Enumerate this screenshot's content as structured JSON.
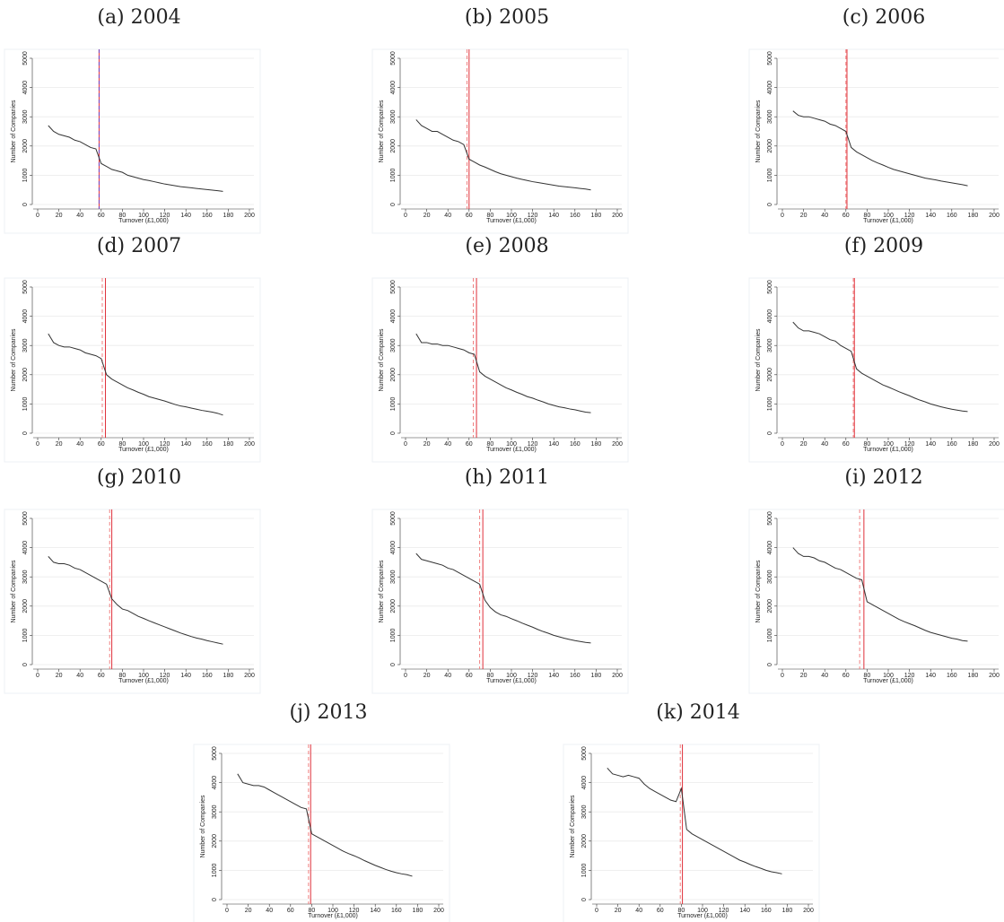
{
  "chart_data": [
    {
      "type": "line",
      "title": "(a) 2004",
      "xlabel": "Turnover (£1,000)",
      "ylabel": "Number of Companies",
      "color": "#333333",
      "xlim": [
        0,
        200
      ],
      "ylim": [
        0,
        5000
      ],
      "xticks": [
        0,
        20,
        40,
        60,
        80,
        100,
        120,
        140,
        160,
        180,
        200
      ],
      "yticks": [
        0,
        1000,
        2000,
        3000,
        4000,
        5000
      ],
      "grid": true,
      "vlines": [
        {
          "x": 58,
          "style": "solid",
          "color": "#e0303a"
        },
        {
          "x": 58,
          "style": "dashed",
          "color": "#7040c0"
        }
      ],
      "x": [
        10,
        15,
        20,
        25,
        30,
        35,
        40,
        45,
        50,
        55,
        60,
        65,
        70,
        75,
        80,
        85,
        90,
        95,
        100,
        105,
        110,
        115,
        120,
        125,
        130,
        135,
        140,
        145,
        150,
        155,
        160,
        165,
        170,
        175
      ],
      "values": [
        2700,
        2500,
        2400,
        2350,
        2300,
        2200,
        2150,
        2050,
        1950,
        1900,
        1400,
        1300,
        1200,
        1150,
        1100,
        1000,
        950,
        900,
        850,
        820,
        780,
        740,
        700,
        670,
        640,
        610,
        590,
        570,
        550,
        530,
        510,
        490,
        470,
        450
      ]
    },
    {
      "type": "line",
      "title": "(b) 2005",
      "xlabel": "Turnover (£1,000)",
      "ylabel": "Number of Companies",
      "color": "#333333",
      "xlim": [
        0,
        200
      ],
      "ylim": [
        0,
        5000
      ],
      "xticks": [
        0,
        20,
        40,
        60,
        80,
        100,
        120,
        140,
        160,
        180,
        200
      ],
      "yticks": [
        0,
        1000,
        2000,
        3000,
        4000,
        5000
      ],
      "grid": true,
      "vlines": [
        {
          "x": 60,
          "style": "solid",
          "color": "#e0303a"
        },
        {
          "x": 58,
          "style": "dashed",
          "color": "#f08080"
        }
      ],
      "x": [
        10,
        15,
        20,
        25,
        30,
        35,
        40,
        45,
        50,
        55,
        60,
        65,
        70,
        75,
        80,
        85,
        90,
        95,
        100,
        105,
        110,
        115,
        120,
        125,
        130,
        135,
        140,
        145,
        150,
        155,
        160,
        165,
        170,
        175
      ],
      "values": [
        2900,
        2700,
        2600,
        2500,
        2500,
        2400,
        2300,
        2200,
        2150,
        2050,
        1550,
        1450,
        1350,
        1280,
        1200,
        1120,
        1050,
        1000,
        950,
        900,
        860,
        820,
        780,
        750,
        720,
        690,
        660,
        630,
        610,
        590,
        570,
        550,
        530,
        500
      ]
    },
    {
      "type": "line",
      "title": "(c) 2006",
      "xlabel": "Turnover (£1,000)",
      "ylabel": "Number of Companies",
      "color": "#333333",
      "xlim": [
        0,
        200
      ],
      "ylim": [
        0,
        5000
      ],
      "xticks": [
        0,
        20,
        40,
        60,
        80,
        100,
        120,
        140,
        160,
        180,
        200
      ],
      "yticks": [
        0,
        1000,
        2000,
        3000,
        4000,
        5000
      ],
      "grid": true,
      "vlines": [
        {
          "x": 61,
          "style": "solid",
          "color": "#e0303a"
        },
        {
          "x": 60,
          "style": "dashed",
          "color": "#f08080"
        }
      ],
      "x": [
        10,
        15,
        20,
        25,
        30,
        35,
        40,
        45,
        50,
        55,
        60,
        65,
        70,
        75,
        80,
        85,
        90,
        95,
        100,
        105,
        110,
        115,
        120,
        125,
        130,
        135,
        140,
        145,
        150,
        155,
        160,
        165,
        170,
        175
      ],
      "values": [
        3200,
        3050,
        3000,
        3000,
        2950,
        2900,
        2850,
        2750,
        2700,
        2600,
        2500,
        1950,
        1800,
        1700,
        1600,
        1500,
        1420,
        1350,
        1270,
        1200,
        1150,
        1100,
        1050,
        1000,
        950,
        900,
        870,
        840,
        800,
        770,
        740,
        710,
        680,
        640
      ]
    },
    {
      "type": "line",
      "title": "(d) 2007",
      "xlabel": "Turnover (£1,000)",
      "ylabel": "Number of Companies",
      "color": "#333333",
      "xlim": [
        0,
        200
      ],
      "ylim": [
        0,
        5000
      ],
      "xticks": [
        0,
        20,
        40,
        60,
        80,
        100,
        120,
        140,
        160,
        180,
        200
      ],
      "yticks": [
        0,
        1000,
        2000,
        3000,
        4000,
        5000
      ],
      "grid": true,
      "vlines": [
        {
          "x": 64,
          "style": "solid",
          "color": "#e0303a"
        },
        {
          "x": 61,
          "style": "dashed",
          "color": "#f08080"
        }
      ],
      "x": [
        10,
        15,
        20,
        25,
        30,
        35,
        40,
        45,
        50,
        55,
        60,
        65,
        70,
        75,
        80,
        85,
        90,
        95,
        100,
        105,
        110,
        115,
        120,
        125,
        130,
        135,
        140,
        145,
        150,
        155,
        160,
        165,
        170,
        175
      ],
      "values": [
        3400,
        3100,
        3000,
        2950,
        2950,
        2900,
        2850,
        2750,
        2700,
        2650,
        2550,
        2000,
        1850,
        1750,
        1650,
        1550,
        1480,
        1400,
        1330,
        1250,
        1200,
        1150,
        1100,
        1040,
        980,
        930,
        900,
        860,
        820,
        780,
        750,
        720,
        680,
        620
      ]
    },
    {
      "type": "line",
      "title": "(e) 2008",
      "xlabel": "Turnover (£1,000)",
      "ylabel": "Number of Companies",
      "color": "#333333",
      "xlim": [
        0,
        200
      ],
      "ylim": [
        0,
        5000
      ],
      "xticks": [
        0,
        20,
        40,
        60,
        80,
        100,
        120,
        140,
        160,
        180,
        200
      ],
      "yticks": [
        0,
        1000,
        2000,
        3000,
        4000,
        5000
      ],
      "grid": true,
      "vlines": [
        {
          "x": 67,
          "style": "solid",
          "color": "#e0303a"
        },
        {
          "x": 64,
          "style": "dashed",
          "color": "#f08080"
        }
      ],
      "x": [
        10,
        15,
        20,
        25,
        30,
        35,
        40,
        45,
        50,
        55,
        60,
        65,
        70,
        75,
        80,
        85,
        90,
        95,
        100,
        105,
        110,
        115,
        120,
        125,
        130,
        135,
        140,
        145,
        150,
        155,
        160,
        165,
        170,
        175
      ],
      "values": [
        3400,
        3100,
        3100,
        3050,
        3050,
        3000,
        3000,
        2950,
        2900,
        2850,
        2750,
        2700,
        2100,
        1950,
        1850,
        1750,
        1650,
        1550,
        1480,
        1400,
        1330,
        1250,
        1200,
        1130,
        1070,
        1000,
        950,
        900,
        870,
        830,
        800,
        760,
        720,
        700
      ]
    },
    {
      "type": "line",
      "title": "(f) 2009",
      "xlabel": "Turnover (£1,000)",
      "ylabel": "Number of Companies",
      "color": "#333333",
      "xlim": [
        0,
        200
      ],
      "ylim": [
        0,
        5000
      ],
      "xticks": [
        0,
        20,
        40,
        60,
        80,
        100,
        120,
        140,
        160,
        180,
        200
      ],
      "yticks": [
        0,
        1000,
        2000,
        3000,
        4000,
        5000
      ],
      "grid": true,
      "vlines": [
        {
          "x": 68,
          "style": "solid",
          "color": "#e0303a"
        },
        {
          "x": 67,
          "style": "dashed",
          "color": "#f08080"
        }
      ],
      "x": [
        10,
        15,
        20,
        25,
        30,
        35,
        40,
        45,
        50,
        55,
        60,
        65,
        70,
        75,
        80,
        85,
        90,
        95,
        100,
        105,
        110,
        115,
        120,
        125,
        130,
        135,
        140,
        145,
        150,
        155,
        160,
        165,
        170,
        175
      ],
      "values": [
        3800,
        3600,
        3500,
        3500,
        3450,
        3400,
        3300,
        3200,
        3150,
        3000,
        2900,
        2800,
        2200,
        2050,
        1950,
        1850,
        1750,
        1650,
        1580,
        1500,
        1420,
        1350,
        1280,
        1200,
        1130,
        1070,
        1000,
        950,
        900,
        860,
        820,
        790,
        760,
        740
      ]
    },
    {
      "type": "line",
      "title": "(g) 2010",
      "xlabel": "Turnover (£1,000)",
      "ylabel": "Number of Companies",
      "color": "#333333",
      "xlim": [
        0,
        200
      ],
      "ylim": [
        0,
        5000
      ],
      "xticks": [
        0,
        20,
        40,
        60,
        80,
        100,
        120,
        140,
        160,
        180,
        200
      ],
      "yticks": [
        0,
        1000,
        2000,
        3000,
        4000,
        5000
      ],
      "grid": true,
      "vlines": [
        {
          "x": 70,
          "style": "solid",
          "color": "#e0303a"
        },
        {
          "x": 68,
          "style": "dashed",
          "color": "#f08080"
        }
      ],
      "x": [
        10,
        15,
        20,
        25,
        30,
        35,
        40,
        45,
        50,
        55,
        60,
        65,
        70,
        75,
        80,
        85,
        90,
        95,
        100,
        105,
        110,
        115,
        120,
        125,
        130,
        135,
        140,
        145,
        150,
        155,
        160,
        165,
        170,
        175
      ],
      "values": [
        3700,
        3500,
        3450,
        3450,
        3400,
        3300,
        3250,
        3150,
        3050,
        2950,
        2850,
        2750,
        2250,
        2050,
        1900,
        1850,
        1750,
        1650,
        1580,
        1500,
        1430,
        1360,
        1290,
        1220,
        1150,
        1080,
        1020,
        960,
        910,
        870,
        820,
        780,
        740,
        700
      ]
    },
    {
      "type": "line",
      "title": "(h) 2011",
      "xlabel": "Turnover (£1,000)",
      "ylabel": "Number of Companies",
      "color": "#333333",
      "xlim": [
        0,
        200
      ],
      "ylim": [
        0,
        5000
      ],
      "xticks": [
        0,
        20,
        40,
        60,
        80,
        100,
        120,
        140,
        160,
        180,
        200
      ],
      "yticks": [
        0,
        1000,
        2000,
        3000,
        4000,
        5000
      ],
      "grid": true,
      "vlines": [
        {
          "x": 73,
          "style": "solid",
          "color": "#e0303a"
        },
        {
          "x": 70,
          "style": "dashed",
          "color": "#f08080"
        }
      ],
      "x": [
        10,
        15,
        20,
        25,
        30,
        35,
        40,
        45,
        50,
        55,
        60,
        65,
        70,
        75,
        80,
        85,
        90,
        95,
        100,
        105,
        110,
        115,
        120,
        125,
        130,
        135,
        140,
        145,
        150,
        155,
        160,
        165,
        170,
        175
      ],
      "values": [
        3800,
        3600,
        3550,
        3500,
        3450,
        3400,
        3300,
        3250,
        3150,
        3050,
        2950,
        2850,
        2750,
        2200,
        1950,
        1800,
        1700,
        1650,
        1570,
        1500,
        1420,
        1350,
        1280,
        1200,
        1130,
        1070,
        1000,
        950,
        900,
        860,
        820,
        790,
        760,
        740
      ]
    },
    {
      "type": "line",
      "title": "(i) 2012",
      "xlabel": "Turnover (£1,000)",
      "ylabel": "Number of Companies",
      "color": "#333333",
      "xlim": [
        0,
        200
      ],
      "ylim": [
        0,
        5000
      ],
      "xticks": [
        0,
        20,
        40,
        60,
        80,
        100,
        120,
        140,
        160,
        180,
        200
      ],
      "yticks": [
        0,
        1000,
        2000,
        3000,
        4000,
        5000
      ],
      "grid": true,
      "vlines": [
        {
          "x": 77,
          "style": "solid",
          "color": "#e0303a"
        },
        {
          "x": 73,
          "style": "dashed",
          "color": "#f08080"
        }
      ],
      "x": [
        10,
        15,
        20,
        25,
        30,
        35,
        40,
        45,
        50,
        55,
        60,
        65,
        70,
        75,
        80,
        85,
        90,
        95,
        100,
        105,
        110,
        115,
        120,
        125,
        130,
        135,
        140,
        145,
        150,
        155,
        160,
        165,
        170,
        175
      ],
      "values": [
        4000,
        3800,
        3700,
        3700,
        3650,
        3550,
        3500,
        3400,
        3300,
        3250,
        3150,
        3050,
        2950,
        2900,
        2150,
        2050,
        1950,
        1850,
        1750,
        1650,
        1550,
        1470,
        1400,
        1330,
        1250,
        1170,
        1100,
        1050,
        1000,
        950,
        900,
        870,
        820,
        800
      ]
    },
    {
      "type": "line",
      "title": "(j) 2013",
      "xlabel": "Turnover (£1,000)",
      "ylabel": "Number of Companies",
      "color": "#333333",
      "xlim": [
        0,
        200
      ],
      "ylim": [
        0,
        5000
      ],
      "xticks": [
        0,
        20,
        40,
        60,
        80,
        100,
        120,
        140,
        160,
        180,
        200
      ],
      "yticks": [
        0,
        1000,
        2000,
        3000,
        4000,
        5000
      ],
      "grid": true,
      "vlines": [
        {
          "x": 79,
          "style": "solid",
          "color": "#e0303a"
        },
        {
          "x": 77,
          "style": "dashed",
          "color": "#f08080"
        }
      ],
      "x": [
        10,
        15,
        20,
        25,
        30,
        35,
        40,
        45,
        50,
        55,
        60,
        65,
        70,
        75,
        80,
        85,
        90,
        95,
        100,
        105,
        110,
        115,
        120,
        125,
        130,
        135,
        140,
        145,
        150,
        155,
        160,
        165,
        170,
        175
      ],
      "values": [
        4300,
        4000,
        3950,
        3900,
        3900,
        3850,
        3750,
        3650,
        3550,
        3450,
        3350,
        3250,
        3150,
        3100,
        2250,
        2150,
        2050,
        1950,
        1850,
        1750,
        1650,
        1570,
        1500,
        1420,
        1330,
        1250,
        1170,
        1100,
        1030,
        970,
        920,
        880,
        850,
        800
      ]
    },
    {
      "type": "line",
      "title": "(k) 2014",
      "xlabel": "Turnover (£1,000)",
      "ylabel": "Number of Companies",
      "color": "#333333",
      "xlim": [
        0,
        200
      ],
      "ylim": [
        0,
        5000
      ],
      "xticks": [
        0,
        20,
        40,
        60,
        80,
        100,
        120,
        140,
        160,
        180,
        200
      ],
      "yticks": [
        0,
        1000,
        2000,
        3000,
        4000,
        5000
      ],
      "grid": true,
      "vlines": [
        {
          "x": 81,
          "style": "solid",
          "color": "#e0303a"
        },
        {
          "x": 79,
          "style": "dashed",
          "color": "#f08080"
        }
      ],
      "x": [
        10,
        15,
        20,
        25,
        30,
        35,
        40,
        45,
        50,
        55,
        60,
        65,
        70,
        75,
        80,
        85,
        90,
        95,
        100,
        105,
        110,
        115,
        120,
        125,
        130,
        135,
        140,
        145,
        150,
        155,
        160,
        165,
        170,
        175
      ],
      "values": [
        4500,
        4300,
        4250,
        4200,
        4250,
        4200,
        4150,
        3950,
        3800,
        3700,
        3600,
        3500,
        3400,
        3350,
        3800,
        2400,
        2250,
        2150,
        2050,
        1950,
        1850,
        1750,
        1650,
        1550,
        1450,
        1350,
        1280,
        1200,
        1130,
        1070,
        1000,
        950,
        920,
        880
      ]
    }
  ]
}
